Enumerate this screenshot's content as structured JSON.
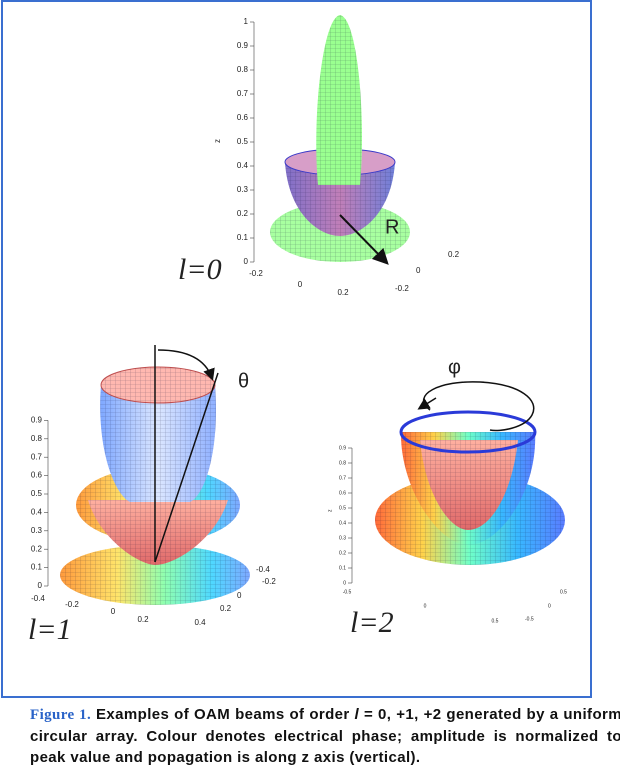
{
  "panels": [
    {
      "label": "l=0",
      "axis_label": "z",
      "annotation": "R",
      "z_ticks": [
        "0",
        "0.1",
        "0.2",
        "0.3",
        "0.4",
        "0.5",
        "0.6",
        "0.7",
        "0.8",
        "0.9",
        "1"
      ],
      "x_ticks": [
        "-0.2",
        "0",
        "0.2"
      ],
      "y_ticks": [
        "0.2",
        "0",
        "-0.2"
      ]
    },
    {
      "label": "l=1",
      "annotation": "θ",
      "z_ticks": [
        "0",
        "0.1",
        "0.2",
        "0.3",
        "0.4",
        "0.5",
        "0.6",
        "0.7",
        "0.8",
        "0.9"
      ],
      "x_ticks": [
        "-0.4",
        "-0.2",
        "0",
        "0.2",
        "0.4"
      ],
      "y_ticks": [
        "-0.4",
        "-0.2",
        "0",
        "0.2"
      ]
    },
    {
      "label": "l=2",
      "axis_label": "z",
      "annotation": "φ",
      "z_ticks": [
        "0",
        "0.1",
        "0.2",
        "0.3",
        "0.4",
        "0.5",
        "0.6",
        "0.7",
        "0.8",
        "0.9"
      ],
      "x_ticks": [
        "-0.5",
        "0",
        "0.5"
      ],
      "y_ticks": [
        "0.5",
        "0",
        "-0.5"
      ]
    }
  ],
  "caption": {
    "label": "Figure 1.",
    "text_before": "Examples of OAM beams of order ",
    "symbol": "l",
    "text_after": " = 0, +1, +2 generated by a uniform circular array. Colour denotes electrical phase; amplitude is normalized to peak value and popagation is along z axis (vertical)."
  }
}
